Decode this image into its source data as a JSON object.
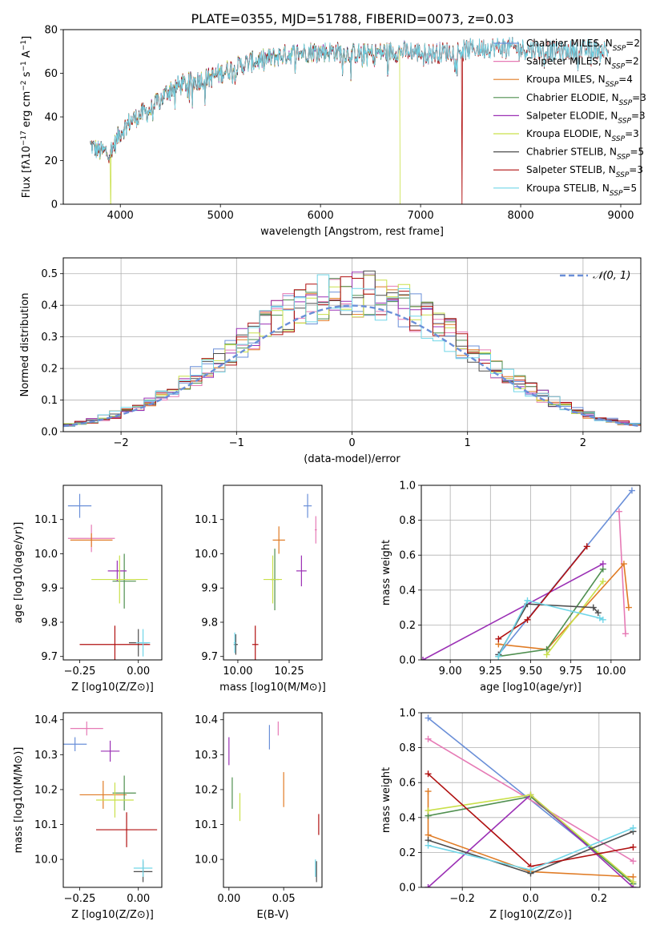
{
  "figure": {
    "title": "PLATE=0355, MJD=51788, FIBERID=0073, z=0.03"
  },
  "series_styles": [
    {
      "key": "chabrier_miles",
      "color": "#6a8fd8"
    },
    {
      "key": "salpeter_miles",
      "color": "#e67ab5"
    },
    {
      "key": "kroupa_miles",
      "color": "#e07b24"
    },
    {
      "key": "chabrier_elodie",
      "color": "#4f8f4f"
    },
    {
      "key": "salpeter_elodie",
      "color": "#9b30b5"
    },
    {
      "key": "kroupa_elodie",
      "color": "#c9e04a"
    },
    {
      "key": "chabrier_stelib",
      "color": "#4d4d4d"
    },
    {
      "key": "salpeter_stelib",
      "color": "#b01010"
    },
    {
      "key": "kroupa_stelib",
      "color": "#70d6e8"
    }
  ],
  "chart_data": [
    {
      "id": "spectrum",
      "type": "line",
      "xlabel": "wavelength [Angstrom, rest frame]",
      "ylabel": "Flux [f_λ10^-17 erg cm^-2 s^-1 A^-1]",
      "xlim": [
        3430,
        9200
      ],
      "ylim": [
        0,
        80
      ],
      "xticks": [
        4000,
        5000,
        6000,
        7000,
        8000,
        9000
      ],
      "yticks": [
        0,
        20,
        40,
        60,
        80
      ],
      "grid": false,
      "legend_position": "top-right",
      "legend": [
        {
          "base": "Chabrier MILES, N",
          "sub": "SSP",
          "tail": "=2"
        },
        {
          "base": "Salpeter MILES, N",
          "sub": "SSP",
          "tail": "=2"
        },
        {
          "base": "Kroupa MILES, N",
          "sub": "SSP",
          "tail": "=4"
        },
        {
          "base": "Chabrier ELODIE, N",
          "sub": "SSP",
          "tail": "=3"
        },
        {
          "base": "Salpeter ELODIE, N",
          "sub": "SSP",
          "tail": "=3"
        },
        {
          "base": "Kroupa ELODIE, N",
          "sub": "SSP",
          "tail": "=3"
        },
        {
          "base": "Chabrier STELIB, N",
          "sub": "SSP",
          "tail": "=5"
        },
        {
          "base": "Salpeter STELIB, N",
          "sub": "SSP",
          "tail": "=3"
        },
        {
          "base": "Kroupa STELIB, N",
          "sub": "SSP",
          "tail": "=5"
        }
      ],
      "continuum": [
        [
          3700,
          27
        ],
        [
          3800,
          24
        ],
        [
          3900,
          24
        ],
        [
          3950,
          28
        ],
        [
          4000,
          33
        ],
        [
          4100,
          38
        ],
        [
          4200,
          41
        ],
        [
          4300,
          43
        ],
        [
          4400,
          48
        ],
        [
          4500,
          53
        ],
        [
          4700,
          56
        ],
        [
          4900,
          58
        ],
        [
          5100,
          62
        ],
        [
          5300,
          65
        ],
        [
          5500,
          67
        ],
        [
          5700,
          69
        ],
        [
          5900,
          70
        ],
        [
          6100,
          70
        ],
        [
          6300,
          69
        ],
        [
          6500,
          69
        ],
        [
          6700,
          70
        ],
        [
          6900,
          70
        ],
        [
          7100,
          69
        ],
        [
          7300,
          70
        ],
        [
          7500,
          71
        ],
        [
          7800,
          72
        ],
        [
          8100,
          71
        ],
        [
          8400,
          70
        ],
        [
          8700,
          71
        ],
        [
          8880,
          71
        ]
      ],
      "dropouts": [
        {
          "series": "kroupa_elodie",
          "x": 3905
        },
        {
          "series": "kroupa_elodie",
          "x": 6795
        },
        {
          "series": "salpeter_stelib",
          "x": 7415
        }
      ],
      "series_ranges": {
        "miles": [
          3700,
          7400
        ],
        "elodie": [
          3700,
          6800
        ],
        "stelib": [
          3700,
          8880
        ]
      }
    },
    {
      "id": "residuals",
      "type": "histogram",
      "xlabel": "(data-model)/error",
      "ylabel": "Normed distribution",
      "xlim": [
        -2.5,
        2.5
      ],
      "ylim": [
        0,
        0.55
      ],
      "xticks": [
        -2,
        -1,
        0,
        1,
        2
      ],
      "yticks": [
        0.0,
        0.1,
        0.2,
        0.3,
        0.4,
        0.5
      ],
      "grid": true,
      "bin_width": 0.1,
      "legend_position": "top-right",
      "gaussian_label": "𝒩(0, 1)",
      "gaussian_color": "#6a8fd8"
    },
    {
      "id": "age_vs_Z",
      "type": "scatter",
      "xlabel": "Z [log10(Z/Z⊙)]",
      "ylabel": "age [log10(age/yr)]",
      "xlim": [
        -0.32,
        0.1
      ],
      "ylim": [
        9.69,
        10.2
      ],
      "xticks": [
        -0.25,
        0.0
      ],
      "yticks": [
        9.7,
        9.8,
        9.9,
        10.0,
        10.1
      ],
      "grid": false,
      "points": [
        {
          "s": "chabrier_miles",
          "x": -0.25,
          "y": 10.14,
          "ex": 0.05,
          "ey": 0.035
        },
        {
          "s": "salpeter_miles",
          "x": -0.2,
          "y": 10.045,
          "ex": 0.1,
          "ey": 0.04
        },
        {
          "s": "kroupa_miles",
          "x": -0.2,
          "y": 10.04,
          "ex": 0.09,
          "ey": 0.02
        },
        {
          "s": "chabrier_elodie",
          "x": -0.06,
          "y": 9.92,
          "ex": 0.05,
          "ey": 0.08
        },
        {
          "s": "salpeter_elodie",
          "x": -0.09,
          "y": 9.95,
          "ex": 0.04,
          "ey": 0.03
        },
        {
          "s": "kroupa_elodie",
          "x": -0.08,
          "y": 9.925,
          "ex": 0.12,
          "ey": 0.07
        },
        {
          "s": "chabrier_stelib",
          "x": 0.0,
          "y": 9.74,
          "ex": 0.04,
          "ey": 0.04
        },
        {
          "s": "salpeter_stelib",
          "x": -0.1,
          "y": 9.735,
          "ex": 0.15,
          "ey": 0.055
        },
        {
          "s": "kroupa_stelib",
          "x": 0.02,
          "y": 9.74,
          "ex": 0.03,
          "ey": 0.04
        }
      ]
    },
    {
      "id": "age_vs_mass",
      "type": "scatter",
      "xlabel": "mass [log10(M/M⊙)]",
      "ylabel": "",
      "xlim": [
        9.93,
        10.41
      ],
      "ylim": [
        9.69,
        10.2
      ],
      "xticks": [
        10.0,
        10.25
      ],
      "yticks": [
        9.7,
        9.8,
        9.9,
        10.0,
        10.1
      ],
      "grid": false,
      "points": [
        {
          "s": "chabrier_miles",
          "x": 10.34,
          "y": 10.14,
          "ex": 0.02,
          "ey": 0.035
        },
        {
          "s": "salpeter_miles",
          "x": 10.38,
          "y": 10.07,
          "ex": 0.005,
          "ey": 0.04
        },
        {
          "s": "kroupa_miles",
          "x": 10.2,
          "y": 10.04,
          "ex": 0.03,
          "ey": 0.04
        },
        {
          "s": "chabrier_elodie",
          "x": 10.18,
          "y": 9.925,
          "ex": 0.02,
          "ey": 0.09
        },
        {
          "s": "salpeter_elodie",
          "x": 10.31,
          "y": 9.95,
          "ex": 0.025,
          "ey": 0.045
        },
        {
          "s": "kroupa_elodie",
          "x": 10.17,
          "y": 9.925,
          "ex": 0.045,
          "ey": 0.07
        },
        {
          "s": "chabrier_stelib",
          "x": 9.99,
          "y": 9.735,
          "ex": 0.01,
          "ey": 0.03
        },
        {
          "s": "salpeter_stelib",
          "x": 10.085,
          "y": 9.735,
          "ex": 0.015,
          "ey": 0.055
        },
        {
          "s": "kroupa_stelib",
          "x": 9.985,
          "y": 9.74,
          "ex": 0.005,
          "ey": 0.03
        }
      ]
    },
    {
      "id": "weight_vs_age",
      "type": "line",
      "xlabel": "age [log10(age/yr)]",
      "ylabel": "mass weight",
      "xlim": [
        8.82,
        10.18
      ],
      "ylim": [
        0,
        1
      ],
      "xticks": [
        9.0,
        9.25,
        9.5,
        9.75,
        10.0
      ],
      "yticks": [
        0.0,
        0.2,
        0.4,
        0.6,
        0.8,
        1.0
      ],
      "grid": true,
      "lines": [
        {
          "s": "chabrier_miles",
          "pts": [
            [
              9.3,
              0.03
            ],
            [
              10.13,
              0.97
            ]
          ]
        },
        {
          "s": "salpeter_miles",
          "pts": [
            [
              10.05,
              0.85
            ],
            [
              10.09,
              0.15
            ]
          ]
        },
        {
          "s": "kroupa_miles",
          "pts": [
            [
              9.3,
              0.09
            ],
            [
              9.6,
              0.06
            ],
            [
              10.08,
              0.55
            ],
            [
              10.11,
              0.3
            ]
          ]
        },
        {
          "s": "chabrier_elodie",
          "pts": [
            [
              9.3,
              0.02
            ],
            [
              9.6,
              0.06
            ],
            [
              9.95,
              0.52
            ]
          ]
        },
        {
          "s": "salpeter_elodie",
          "pts": [
            [
              8.83,
              0.0
            ],
            [
              9.95,
              0.55
            ]
          ]
        },
        {
          "s": "kroupa_elodie",
          "pts": [
            [
              9.6,
              0.03
            ],
            [
              9.95,
              0.45
            ]
          ]
        },
        {
          "s": "chabrier_stelib",
          "pts": [
            [
              9.3,
              0.03
            ],
            [
              9.48,
              0.32
            ],
            [
              9.89,
              0.3
            ],
            [
              9.92,
              0.27
            ]
          ]
        },
        {
          "s": "salpeter_stelib",
          "pts": [
            [
              9.3,
              0.12
            ],
            [
              9.48,
              0.23
            ],
            [
              9.85,
              0.65
            ]
          ]
        },
        {
          "s": "kroupa_stelib",
          "pts": [
            [
              9.3,
              0.02
            ],
            [
              9.48,
              0.34
            ],
            [
              9.93,
              0.24
            ],
            [
              9.95,
              0.23
            ]
          ]
        }
      ]
    },
    {
      "id": "mass_vs_Z",
      "type": "scatter",
      "xlabel": "Z [log10(Z/Z⊙)]",
      "ylabel": "mass [log10(M/M⊙)]",
      "xlim": [
        -0.32,
        0.1
      ],
      "ylim": [
        9.92,
        10.42
      ],
      "xticks": [
        -0.25,
        0.0
      ],
      "yticks": [
        10.0,
        10.1,
        10.2,
        10.3,
        10.4
      ],
      "grid": false,
      "points": [
        {
          "s": "chabrier_miles",
          "x": -0.27,
          "y": 10.33,
          "ex": 0.05,
          "ey": 0.02
        },
        {
          "s": "salpeter_miles",
          "x": -0.22,
          "y": 10.375,
          "ex": 0.07,
          "ey": 0.02
        },
        {
          "s": "kroupa_miles",
          "x": -0.15,
          "y": 10.185,
          "ex": 0.1,
          "ey": 0.04
        },
        {
          "s": "chabrier_elodie",
          "x": -0.06,
          "y": 10.19,
          "ex": 0.05,
          "ey": 0.05
        },
        {
          "s": "salpeter_elodie",
          "x": -0.12,
          "y": 10.31,
          "ex": 0.04,
          "ey": 0.03
        },
        {
          "s": "kroupa_elodie",
          "x": -0.1,
          "y": 10.17,
          "ex": 0.08,
          "ey": 0.05
        },
        {
          "s": "chabrier_stelib",
          "x": 0.02,
          "y": 9.965,
          "ex": 0.04,
          "ey": 0.03
        },
        {
          "s": "salpeter_stelib",
          "x": -0.05,
          "y": 10.085,
          "ex": 0.13,
          "ey": 0.05
        },
        {
          "s": "kroupa_stelib",
          "x": 0.02,
          "y": 9.975,
          "ex": 0.04,
          "ey": 0.025
        }
      ]
    },
    {
      "id": "mass_vs_ebv",
      "type": "scatter",
      "xlabel": "E(B-V)",
      "ylabel": "",
      "xlim": [
        -0.005,
        0.085
      ],
      "ylim": [
        9.92,
        10.42
      ],
      "xticks": [
        0.0,
        0.05
      ],
      "yticks": [
        10.0,
        10.1,
        10.2,
        10.3,
        10.4
      ],
      "grid": false,
      "points": [
        {
          "s": "chabrier_miles",
          "x": 0.037,
          "y": 10.35,
          "ex": 0,
          "ey": 0.035
        },
        {
          "s": "salpeter_miles",
          "x": 0.045,
          "y": 10.375,
          "ex": 0,
          "ey": 0.02
        },
        {
          "s": "kroupa_miles",
          "x": 0.05,
          "y": 10.2,
          "ex": 0,
          "ey": 0.05
        },
        {
          "s": "chabrier_elodie",
          "x": 0.003,
          "y": 10.19,
          "ex": 0,
          "ey": 0.045
        },
        {
          "s": "salpeter_elodie",
          "x": 0.0,
          "y": 10.31,
          "ex": 0,
          "ey": 0.04
        },
        {
          "s": "kroupa_elodie",
          "x": 0.01,
          "y": 10.15,
          "ex": 0,
          "ey": 0.04
        },
        {
          "s": "chabrier_stelib",
          "x": 0.08,
          "y": 9.965,
          "ex": 0,
          "ey": 0.03
        },
        {
          "s": "salpeter_stelib",
          "x": 0.082,
          "y": 10.1,
          "ex": 0,
          "ey": 0.03
        },
        {
          "s": "kroupa_stelib",
          "x": 0.079,
          "y": 9.975,
          "ex": 0,
          "ey": 0.025
        }
      ]
    },
    {
      "id": "weight_vs_Z",
      "type": "line",
      "xlabel": "Z [log10(Z/Z⊙)]",
      "ylabel": "mass weight",
      "xlim": [
        -0.32,
        0.32
      ],
      "ylim": [
        0,
        1
      ],
      "xticks": [
        -0.2,
        0.0,
        0.2
      ],
      "yticks": [
        0.0,
        0.2,
        0.4,
        0.6,
        0.8,
        1.0
      ],
      "grid": true,
      "lines": [
        {
          "s": "chabrier_miles",
          "pts": [
            [
              -0.3,
              0.97
            ],
            [
              0.3,
              0.03
            ]
          ]
        },
        {
          "s": "salpeter_miles",
          "pts": [
            [
              -0.3,
              0.85
            ],
            [
              0.3,
              0.15
            ]
          ]
        },
        {
          "s": "kroupa_miles",
          "pts": [
            [
              -0.3,
              0.55
            ],
            [
              -0.3,
              0.3
            ],
            [
              0.0,
              0.09
            ],
            [
              0.3,
              0.06
            ]
          ]
        },
        {
          "s": "chabrier_elodie",
          "pts": [
            [
              -0.3,
              0.41
            ],
            [
              0.0,
              0.52
            ],
            [
              0.3,
              0.02
            ]
          ]
        },
        {
          "s": "salpeter_elodie",
          "pts": [
            [
              -0.3,
              0.0
            ],
            [
              0.0,
              0.53
            ],
            [
              0.3,
              0.0
            ]
          ]
        },
        {
          "s": "kroupa_elodie",
          "pts": [
            [
              -0.3,
              0.44
            ],
            [
              0.0,
              0.53
            ],
            [
              0.3,
              0.03
            ]
          ]
        },
        {
          "s": "chabrier_stelib",
          "pts": [
            [
              -0.3,
              0.27
            ],
            [
              0.0,
              0.08
            ],
            [
              0.3,
              0.32
            ]
          ]
        },
        {
          "s": "salpeter_stelib",
          "pts": [
            [
              -0.3,
              0.65
            ],
            [
              0.0,
              0.12
            ],
            [
              0.3,
              0.23
            ]
          ]
        },
        {
          "s": "kroupa_stelib",
          "pts": [
            [
              -0.3,
              0.24
            ],
            [
              0.0,
              0.1
            ],
            [
              0.3,
              0.34
            ]
          ]
        }
      ]
    }
  ]
}
